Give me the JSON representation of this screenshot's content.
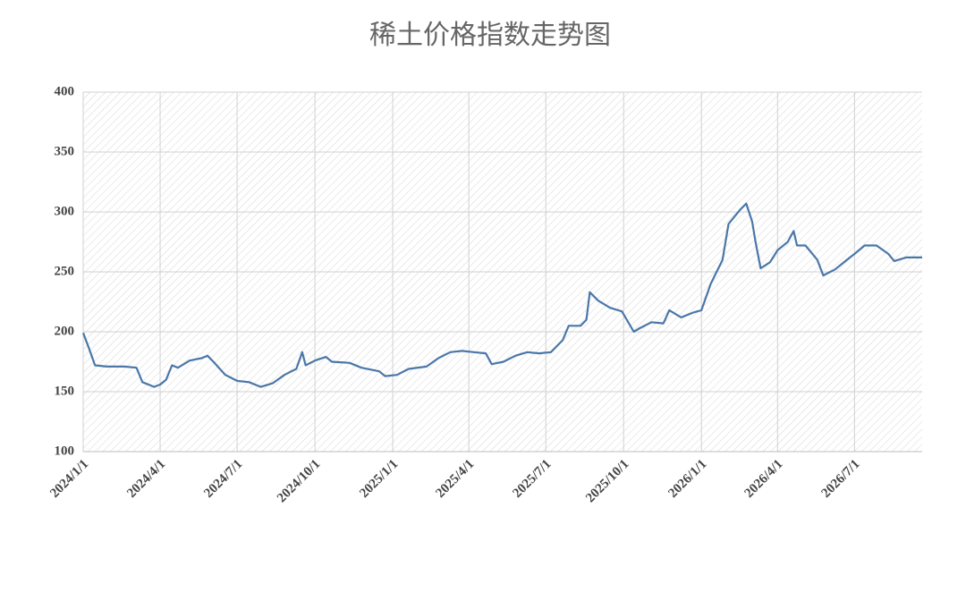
{
  "chart_data": {
    "type": "line",
    "title": "稀土价格指数走势图",
    "x": [
      "2024/1/1",
      "2024/1/8",
      "2024/1/15",
      "2024/1/29",
      "2024/2/19",
      "2024/3/4",
      "2024/3/11",
      "2024/3/25",
      "2024/4/1",
      "2024/4/8",
      "2024/4/15",
      "2024/4/22",
      "2024/5/6",
      "2024/5/20",
      "2024/5/27",
      "2024/6/3",
      "2024/6/17",
      "2024/7/1",
      "2024/7/15",
      "2024/7/29",
      "2024/8/12",
      "2024/8/26",
      "2024/9/9",
      "2024/9/16",
      "2024/9/20",
      "2024/10/1",
      "2024/10/14",
      "2024/10/21",
      "2024/11/11",
      "2024/11/25",
      "2024/12/16",
      "2024/12/23",
      "2025/1/6",
      "2025/1/20",
      "2025/2/10",
      "2025/2/24",
      "2025/3/10",
      "2025/3/24",
      "2025/4/7",
      "2025/4/21",
      "2025/4/28",
      "2025/5/12",
      "2025/5/26",
      "2025/6/9",
      "2025/6/23",
      "2025/7/7",
      "2025/7/21",
      "2025/7/28",
      "2025/8/11",
      "2025/8/18",
      "2025/8/22",
      "2025/9/1",
      "2025/9/15",
      "2025/9/29",
      "2025/10/13",
      "2025/10/20",
      "2025/11/3",
      "2025/11/17",
      "2025/11/24",
      "2025/12/8",
      "2025/12/22",
      "2026/1/1",
      "2026/1/12",
      "2026/1/26",
      "2026/2/2",
      "2026/2/16",
      "2026/2/23",
      "2026/3/2",
      "2026/3/6",
      "2026/3/12",
      "2026/3/23",
      "2026/4/1",
      "2026/4/13",
      "2026/4/20",
      "2026/4/24",
      "2026/5/4",
      "2026/5/18",
      "2026/5/25",
      "2026/6/8",
      "2026/6/22",
      "2026/7/1",
      "2026/7/13",
      "2026/7/27",
      "2026/8/10",
      "2026/8/17",
      "2026/8/31",
      "2026/9/19"
    ],
    "series": [
      {
        "color": "#4a77a8",
        "values": [
          199,
          186,
          172,
          171,
          171,
          170,
          158,
          154,
          156,
          160,
          172,
          170,
          176,
          178,
          180,
          175,
          164,
          159,
          158,
          154,
          157,
          164,
          169,
          183,
          172,
          176,
          179,
          175,
          174,
          170,
          167,
          163,
          164,
          169,
          171,
          178,
          183,
          184,
          183,
          182,
          173,
          175,
          180,
          183,
          182,
          183,
          193,
          205,
          205,
          210,
          233,
          226,
          220,
          217,
          200,
          203,
          208,
          207,
          218,
          212,
          216,
          218,
          240,
          260,
          290,
          302,
          307,
          292,
          275,
          253,
          258,
          268,
          275,
          284,
          272,
          272,
          260,
          247,
          252,
          260,
          265,
          272,
          272,
          265,
          259,
          262,
          262
        ]
      }
    ],
    "xlim": [
      "2024/1/1",
      "2026/9/19"
    ],
    "xticks": [
      "2024/1/1",
      "2024/4/1",
      "2024/7/1",
      "2024/10/1",
      "2025/1/1",
      "2025/4/1",
      "2025/7/1",
      "2025/10/1",
      "2026/1/1",
      "2026/4/1",
      "2026/7/1"
    ],
    "ylim": [
      100,
      400
    ],
    "yticks": [
      100,
      150,
      200,
      250,
      300,
      350,
      400
    ],
    "grid": true
  }
}
